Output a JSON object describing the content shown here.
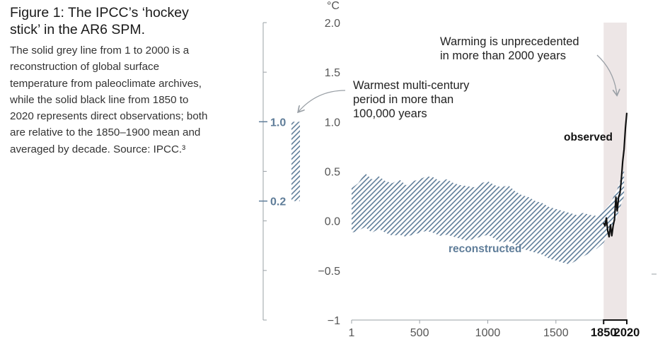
{
  "caption": {
    "title": "Figure 1: The IPCC’s ‘hockey stick’ in the AR6 SPM.",
    "body": "The solid grey line from 1 to 2000 is a reconstruction of global surface temperature from paleoclimate archives, while the solid black line from 1850 to 2020 represents direct observations; both are relative to the 1850–1900 mean and averaged by decade. Source: IPCC.³"
  },
  "colors": {
    "reconstructed": "#5f7d99",
    "observed": "#111111",
    "shade": "#ede6e6",
    "axis": "#9aa0a6"
  },
  "chart_data": {
    "type": "area",
    "unit": "°C",
    "ylim": [
      -1,
      2
    ],
    "yticks": [
      2.0,
      1.5,
      1.0,
      0.5,
      0.0,
      -0.5,
      -1
    ],
    "ytick_labels": [
      "2.0",
      "1.5",
      "1.0",
      "0.5",
      "0.0",
      "−0.5",
      "−1"
    ],
    "xlim": [
      1,
      2020
    ],
    "xticks": [
      1,
      500,
      1000,
      1500
    ],
    "xtick_labels": [
      "1",
      "500",
      "1000",
      "1500"
    ],
    "xticks_bold": [
      1850,
      2020
    ],
    "xtick_bold_labels": [
      "1850",
      "2020"
    ],
    "shaded_period": [
      1850,
      2020
    ],
    "series": [
      {
        "name": "reconstructed",
        "label": "reconstructed",
        "style": "hatched band",
        "x": [
          1,
          50,
          100,
          150,
          200,
          250,
          300,
          350,
          400,
          450,
          500,
          550,
          600,
          650,
          700,
          750,
          800,
          850,
          900,
          950,
          1000,
          1050,
          1100,
          1150,
          1200,
          1250,
          1300,
          1350,
          1400,
          1450,
          1500,
          1550,
          1600,
          1650,
          1700,
          1750,
          1800,
          1850,
          1900,
          1950,
          2000
        ],
        "upper": [
          0.33,
          0.38,
          0.48,
          0.42,
          0.45,
          0.4,
          0.38,
          0.42,
          0.36,
          0.4,
          0.42,
          0.45,
          0.44,
          0.4,
          0.42,
          0.38,
          0.36,
          0.35,
          0.34,
          0.38,
          0.4,
          0.36,
          0.34,
          0.36,
          0.3,
          0.26,
          0.24,
          0.2,
          0.18,
          0.14,
          0.12,
          0.1,
          0.08,
          0.06,
          0.08,
          0.06,
          0.05,
          0.1,
          0.18,
          0.32,
          0.52
        ],
        "lower": [
          -0.12,
          -0.1,
          -0.06,
          -0.12,
          -0.08,
          -0.12,
          -0.15,
          -0.14,
          -0.16,
          -0.14,
          -0.12,
          -0.1,
          -0.12,
          -0.15,
          -0.14,
          -0.16,
          -0.18,
          -0.2,
          -0.18,
          -0.16,
          -0.14,
          -0.18,
          -0.22,
          -0.2,
          -0.24,
          -0.28,
          -0.3,
          -0.32,
          -0.34,
          -0.38,
          -0.4,
          -0.42,
          -0.44,
          -0.4,
          -0.36,
          -0.32,
          -0.28,
          -0.22,
          -0.1,
          0.05,
          0.25
        ]
      },
      {
        "name": "observed",
        "label": "observed",
        "style": "solid line",
        "x": [
          1850,
          1860,
          1870,
          1880,
          1890,
          1900,
          1910,
          1920,
          1930,
          1940,
          1950,
          1960,
          1970,
          1980,
          1990,
          2000,
          2010,
          2020
        ],
        "y": [
          -0.02,
          -0.05,
          0.03,
          -0.1,
          -0.16,
          -0.04,
          -0.15,
          -0.05,
          0.02,
          0.24,
          0.1,
          0.24,
          0.28,
          0.42,
          0.6,
          0.72,
          0.94,
          1.09
        ]
      }
    ],
    "scale_bar": {
      "top_label": "1.0",
      "bottom_label": "0.2",
      "top_value": 1.0,
      "bottom_value": 0.2,
      "ylim": [
        -1,
        2
      ]
    },
    "annotations": {
      "unit_label": "°C",
      "warming_line1": "Warming is unprecedented",
      "warming_line2": "in more than 2000 years",
      "warmest_line1": "Warmest multi-century",
      "warmest_line2": "period in more than",
      "warmest_line3": "100,000 years",
      "observed_label": "observed",
      "reconstructed_label": "reconstructed"
    }
  }
}
